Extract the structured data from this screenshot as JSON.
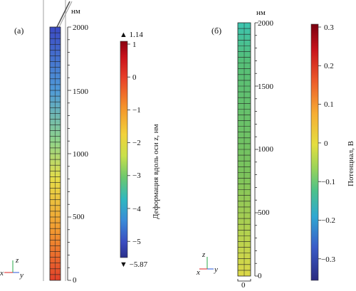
{
  "panel_a": {
    "label": "(а)",
    "unit": "нм",
    "scale_ticks": [
      "2000",
      "1500",
      "1000",
      "500",
      "0"
    ],
    "colorbar": {
      "max_label": "▲ 1.14",
      "min_label": "▼ −5.87",
      "ticks": [
        "1",
        "0",
        "−1",
        "−2",
        "−3",
        "−4",
        "−5"
      ],
      "title": "Деформация вдоль оси z, нм"
    },
    "axes_triad": {
      "x": "x",
      "y": "y",
      "z": "z"
    }
  },
  "panel_b": {
    "label": "(б)",
    "unit": "нм",
    "scale_ticks": [
      "2000",
      "1500",
      "1000",
      "500",
      "0"
    ],
    "width_tick": "0",
    "colorbar": {
      "ticks": [
        "0.3",
        "0.2",
        "0.1",
        "0",
        "−0.1",
        "−0.2",
        "−0.3"
      ],
      "title": "Потенциал, В"
    },
    "axes_triad": {
      "x": "x",
      "y": "y",
      "z": "z"
    }
  },
  "colors": {
    "jet": [
      "#7f0000",
      "#d7191c",
      "#f46d43",
      "#fdae61",
      "#fee08b",
      "#e6f598",
      "#abdda4",
      "#66c2a5",
      "#3288bd",
      "#3b4cc0",
      "#2b2f8c"
    ],
    "rod_a_gradient": [
      "#3d4fc4",
      "#56b4e0",
      "#e8e04a",
      "#f28a2e",
      "#e64a2a"
    ],
    "rod_b_gradient": [
      "#2fc4a8",
      "#5fbf6a",
      "#8fc65a",
      "#c8d44a",
      "#e0d848"
    ]
  }
}
